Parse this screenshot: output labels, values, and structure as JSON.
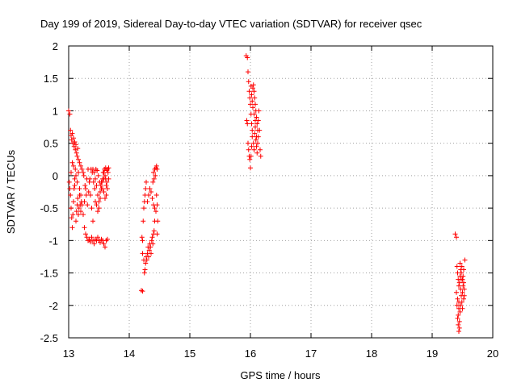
{
  "chart_data": {
    "type": "scatter",
    "title": "Day 199 of 2019, Sidereal Day-to-day VTEC variation (SDTVAR) for receiver qsec",
    "xlabel": "GPS time / hours",
    "ylabel": "SDTVAR / TECUs",
    "xlim": [
      13,
      20
    ],
    "ylim": [
      -2.5,
      2
    ],
    "x_ticks": [
      "13",
      "14",
      "15",
      "16",
      "17",
      "18",
      "19",
      "20"
    ],
    "y_ticks": [
      "2",
      "1.5",
      "1",
      "0.5",
      "0",
      "-0.5",
      "-1",
      "-1.5",
      "-2",
      "-2.5"
    ],
    "grid": true,
    "marker": "+",
    "marker_color": "#ff0000",
    "series": [
      {
        "name": "SDTVAR",
        "points": [
          [
            13.0,
            1.0
          ],
          [
            13.02,
            0.95
          ],
          [
            13.03,
            0.7
          ],
          [
            13.04,
            0.62
          ],
          [
            13.05,
            0.55
          ],
          [
            13.06,
            0.65
          ],
          [
            13.07,
            0.5
          ],
          [
            13.08,
            0.58
          ],
          [
            13.09,
            0.45
          ],
          [
            13.1,
            0.52
          ],
          [
            13.11,
            0.4
          ],
          [
            13.12,
            0.48
          ],
          [
            13.13,
            0.35
          ],
          [
            13.14,
            0.3
          ],
          [
            13.15,
            0.42
          ],
          [
            13.16,
            0.25
          ],
          [
            13.18,
            0.2
          ],
          [
            13.2,
            0.15
          ],
          [
            13.22,
            0.1
          ],
          [
            13.24,
            0.05
          ],
          [
            13.01,
            -0.1
          ],
          [
            13.03,
            -0.3
          ],
          [
            13.04,
            -0.5
          ],
          [
            13.05,
            -0.65
          ],
          [
            13.06,
            -0.8
          ],
          [
            13.07,
            -0.6
          ],
          [
            13.08,
            -0.4
          ],
          [
            13.09,
            -0.2
          ],
          [
            13.1,
            -0.05
          ],
          [
            13.11,
            0.1
          ],
          [
            13.12,
            -0.7
          ],
          [
            13.13,
            -0.55
          ],
          [
            13.14,
            -0.45
          ],
          [
            13.15,
            -0.35
          ],
          [
            13.16,
            -0.6
          ],
          [
            13.17,
            -0.5
          ],
          [
            13.18,
            -0.3
          ],
          [
            13.19,
            -0.45
          ],
          [
            13.2,
            -0.55
          ],
          [
            13.21,
            -0.4
          ],
          [
            13.02,
            -0.2
          ],
          [
            13.04,
            0.05
          ],
          [
            13.06,
            0.2
          ],
          [
            13.08,
            0.15
          ],
          [
            13.1,
            -0.15
          ],
          [
            13.12,
            0.0
          ],
          [
            13.14,
            -0.1
          ],
          [
            13.16,
            0.05
          ],
          [
            13.18,
            -0.2
          ],
          [
            13.2,
            -0.3
          ],
          [
            13.22,
            -0.45
          ],
          [
            13.24,
            -0.6
          ],
          [
            13.26,
            -0.4
          ],
          [
            13.28,
            -0.2
          ],
          [
            13.3,
            -0.05
          ],
          [
            13.32,
            0.1
          ],
          [
            13.34,
            -0.1
          ],
          [
            13.36,
            -0.3
          ],
          [
            13.38,
            -0.5
          ],
          [
            13.4,
            -0.7
          ],
          [
            13.25,
            0.0
          ],
          [
            13.27,
            -0.15
          ],
          [
            13.29,
            -0.3
          ],
          [
            13.31,
            -0.45
          ],
          [
            13.33,
            -0.25
          ],
          [
            13.35,
            -0.05
          ],
          [
            13.37,
            0.1
          ],
          [
            13.39,
            0.05
          ],
          [
            13.41,
            -0.1
          ],
          [
            13.43,
            -0.2
          ],
          [
            13.26,
            -0.8
          ],
          [
            13.28,
            -0.9
          ],
          [
            13.3,
            -0.95
          ],
          [
            13.32,
            -1.0
          ],
          [
            13.34,
            -0.98
          ],
          [
            13.36,
            -1.02
          ],
          [
            13.38,
            -0.95
          ],
          [
            13.4,
            -1.0
          ],
          [
            13.42,
            -1.05
          ],
          [
            13.44,
            -0.98
          ],
          [
            13.46,
            -1.0
          ],
          [
            13.48,
            -0.95
          ],
          [
            13.5,
            -1.0
          ],
          [
            13.52,
            -1.03
          ],
          [
            13.54,
            -0.98
          ],
          [
            13.56,
            -1.0
          ],
          [
            13.58,
            -1.05
          ],
          [
            13.6,
            -1.1
          ],
          [
            13.62,
            -1.0
          ],
          [
            13.64,
            -0.98
          ],
          [
            13.4,
            0.1
          ],
          [
            13.42,
            0.05
          ],
          [
            13.44,
            -0.05
          ],
          [
            13.46,
            -0.15
          ],
          [
            13.48,
            -0.3
          ],
          [
            13.5,
            -0.5
          ],
          [
            13.52,
            -0.35
          ],
          [
            13.54,
            -0.2
          ],
          [
            13.56,
            -0.05
          ],
          [
            13.58,
            0.05
          ],
          [
            13.45,
            0.1
          ],
          [
            13.47,
            0.08
          ],
          [
            13.49,
            0.0
          ],
          [
            13.51,
            -0.1
          ],
          [
            13.53,
            -0.15
          ],
          [
            13.55,
            -0.1
          ],
          [
            13.57,
            0.05
          ],
          [
            13.59,
            0.1
          ],
          [
            13.61,
            0.12
          ],
          [
            13.63,
            0.08
          ],
          [
            13.44,
            -0.4
          ],
          [
            13.46,
            -0.45
          ],
          [
            13.48,
            -0.55
          ],
          [
            13.5,
            -0.4
          ],
          [
            13.52,
            -0.25
          ],
          [
            13.54,
            -0.1
          ],
          [
            13.56,
            -0.2
          ],
          [
            13.58,
            -0.05
          ],
          [
            13.6,
            0.0
          ],
          [
            13.62,
            -0.15
          ],
          [
            13.64,
            0.1
          ],
          [
            13.65,
            0.05
          ],
          [
            13.66,
            -0.05
          ],
          [
            13.62,
            -0.3
          ],
          [
            13.6,
            -0.35
          ],
          [
            13.58,
            -0.25
          ],
          [
            13.66,
            0.12
          ],
          [
            13.64,
            -0.2
          ],
          [
            13.63,
            -0.1
          ],
          [
            13.61,
            -0.05
          ],
          [
            14.2,
            -1.77
          ],
          [
            14.22,
            -1.78
          ],
          [
            14.21,
            -0.95
          ],
          [
            14.22,
            -1.0
          ],
          [
            14.23,
            -0.7
          ],
          [
            14.24,
            -0.5
          ],
          [
            14.25,
            -0.4
          ],
          [
            14.26,
            -0.3
          ],
          [
            14.27,
            -0.2
          ],
          [
            14.28,
            -0.1
          ],
          [
            14.22,
            -1.2
          ],
          [
            14.24,
            -1.3
          ],
          [
            14.25,
            -1.5
          ],
          [
            14.26,
            -1.45
          ],
          [
            14.27,
            -1.35
          ],
          [
            14.28,
            -1.25
          ],
          [
            14.29,
            -1.3
          ],
          [
            14.3,
            -1.2
          ],
          [
            14.31,
            -1.1
          ],
          [
            14.32,
            -1.25
          ],
          [
            14.33,
            -1.15
          ],
          [
            14.34,
            -1.05
          ],
          [
            14.35,
            -1.1
          ],
          [
            14.36,
            -1.2
          ],
          [
            14.37,
            -1.0
          ],
          [
            14.38,
            -0.95
          ],
          [
            14.39,
            -1.05
          ],
          [
            14.4,
            -0.9
          ],
          [
            14.41,
            -0.85
          ],
          [
            14.42,
            -0.7
          ],
          [
            14.3,
            -0.4
          ],
          [
            14.32,
            -0.3
          ],
          [
            14.34,
            -0.2
          ],
          [
            14.36,
            -0.25
          ],
          [
            14.38,
            -0.35
          ],
          [
            14.4,
            -0.45
          ],
          [
            14.42,
            -0.5
          ],
          [
            14.44,
            -0.55
          ],
          [
            14.46,
            -0.45
          ],
          [
            14.45,
            -0.3
          ],
          [
            14.4,
            0.05
          ],
          [
            14.42,
            0.1
          ],
          [
            14.44,
            0.12
          ],
          [
            14.45,
            0.15
          ],
          [
            14.46,
            0.1
          ],
          [
            14.43,
            0.0
          ],
          [
            14.41,
            -0.05
          ],
          [
            14.39,
            -0.1
          ],
          [
            14.47,
            -0.7
          ],
          [
            14.46,
            -0.9
          ],
          [
            15.93,
            1.85
          ],
          [
            15.95,
            1.82
          ],
          [
            15.96,
            1.6
          ],
          [
            15.97,
            1.45
          ],
          [
            15.98,
            1.3
          ],
          [
            15.99,
            1.2
          ],
          [
            16.0,
            1.1
          ],
          [
            16.01,
            0.95
          ],
          [
            16.02,
            0.8
          ],
          [
            16.03,
            0.7
          ],
          [
            15.94,
            0.85
          ],
          [
            15.95,
            0.8
          ],
          [
            15.96,
            0.5
          ],
          [
            15.97,
            0.4
          ],
          [
            15.98,
            0.3
          ],
          [
            15.99,
            0.25
          ],
          [
            16.0,
            0.12
          ],
          [
            16.01,
            0.3
          ],
          [
            16.02,
            0.45
          ],
          [
            16.03,
            0.6
          ],
          [
            16.04,
            1.35
          ],
          [
            16.05,
            1.4
          ],
          [
            16.06,
            1.3
          ],
          [
            16.07,
            1.2
          ],
          [
            16.08,
            1.1
          ],
          [
            16.09,
            1.0
          ],
          [
            16.1,
            0.9
          ],
          [
            16.11,
            0.8
          ],
          [
            16.12,
            0.7
          ],
          [
            16.13,
            0.6
          ],
          [
            16.05,
            0.5
          ],
          [
            16.06,
            0.4
          ],
          [
            16.07,
            0.65
          ],
          [
            16.08,
            0.75
          ],
          [
            16.09,
            0.55
          ],
          [
            16.1,
            0.45
          ],
          [
            16.11,
            0.35
          ],
          [
            16.12,
            0.5
          ],
          [
            16.13,
            0.85
          ],
          [
            16.14,
            1.0
          ],
          [
            16.15,
            0.7
          ],
          [
            16.16,
            0.4
          ],
          [
            16.17,
            0.3
          ],
          [
            16.04,
            1.05
          ],
          [
            16.03,
            1.15
          ],
          [
            16.02,
            1.25
          ],
          [
            16.01,
            1.38
          ],
          [
            16.06,
            0.95
          ],
          [
            16.08,
            0.85
          ],
          [
            16.1,
            0.6
          ],
          [
            19.38,
            -0.9
          ],
          [
            19.4,
            -0.95
          ],
          [
            19.41,
            -1.4
          ],
          [
            19.42,
            -1.5
          ],
          [
            19.43,
            -1.6
          ],
          [
            19.44,
            -1.7
          ],
          [
            19.45,
            -1.65
          ],
          [
            19.46,
            -1.55
          ],
          [
            19.47,
            -1.45
          ],
          [
            19.48,
            -1.5
          ],
          [
            19.4,
            -1.8
          ],
          [
            19.41,
            -2.0
          ],
          [
            19.42,
            -2.2
          ],
          [
            19.43,
            -2.3
          ],
          [
            19.44,
            -2.4
          ],
          [
            19.45,
            -2.25
          ],
          [
            19.46,
            -2.1
          ],
          [
            19.42,
            -1.9
          ],
          [
            19.44,
            -2.05
          ],
          [
            19.43,
            -2.15
          ],
          [
            19.47,
            -1.75
          ],
          [
            19.48,
            -1.85
          ],
          [
            19.49,
            -1.95
          ],
          [
            19.5,
            -1.8
          ],
          [
            19.51,
            -1.7
          ],
          [
            19.52,
            -1.9
          ],
          [
            19.53,
            -1.85
          ],
          [
            19.54,
            -1.3
          ],
          [
            19.52,
            -1.45
          ],
          [
            19.5,
            -1.6
          ],
          [
            19.46,
            -1.35
          ],
          [
            19.48,
            -1.6
          ],
          [
            19.49,
            -1.4
          ],
          [
            19.51,
            -1.55
          ],
          [
            19.53,
            -1.75
          ],
          [
            19.47,
            -2.0
          ],
          [
            19.45,
            -2.35
          ],
          [
            19.44,
            -1.95
          ],
          [
            19.5,
            -2.05
          ],
          [
            19.52,
            -1.65
          ]
        ]
      }
    ]
  }
}
